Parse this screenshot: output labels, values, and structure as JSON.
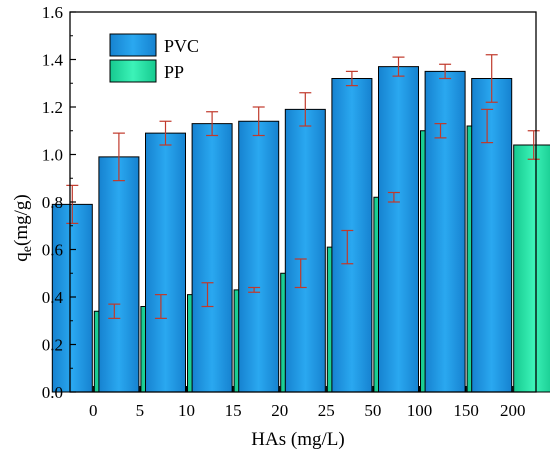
{
  "chart_data": {
    "type": "bar",
    "title": "",
    "xlabel": "HAs (mg/L)",
    "ylabel_main": "q",
    "ylabel_sub": "e",
    "ylabel_rest": "(mg/g)",
    "categories": [
      "0",
      "5",
      "10",
      "15",
      "20",
      "25",
      "50",
      "100",
      "150",
      "200"
    ],
    "ylim": [
      0.0,
      1.6
    ],
    "yticks": [
      "0.0",
      "0.2",
      "0.4",
      "0.6",
      "0.8",
      "1.0",
      "1.2",
      "1.4",
      "1.6"
    ],
    "grid": false,
    "legend_position": "top-left",
    "series": [
      {
        "name": "PVC",
        "color": "#1E9BE6",
        "values": [
          0.79,
          0.99,
          1.09,
          1.13,
          1.14,
          1.19,
          1.32,
          1.37,
          1.35,
          1.32
        ],
        "errors": [
          0.08,
          0.1,
          0.05,
          0.05,
          0.06,
          0.07,
          0.03,
          0.04,
          0.03,
          0.1
        ]
      },
      {
        "name": "PP",
        "color": "#1FE5A8",
        "values": [
          0.34,
          0.36,
          0.41,
          0.43,
          0.5,
          0.61,
          0.82,
          1.1,
          1.12,
          1.04
        ],
        "errors": [
          0.03,
          0.05,
          0.05,
          0.01,
          0.06,
          0.07,
          0.02,
          0.03,
          0.07,
          0.06
        ]
      }
    ],
    "error_bar_color": "#C0392B"
  }
}
